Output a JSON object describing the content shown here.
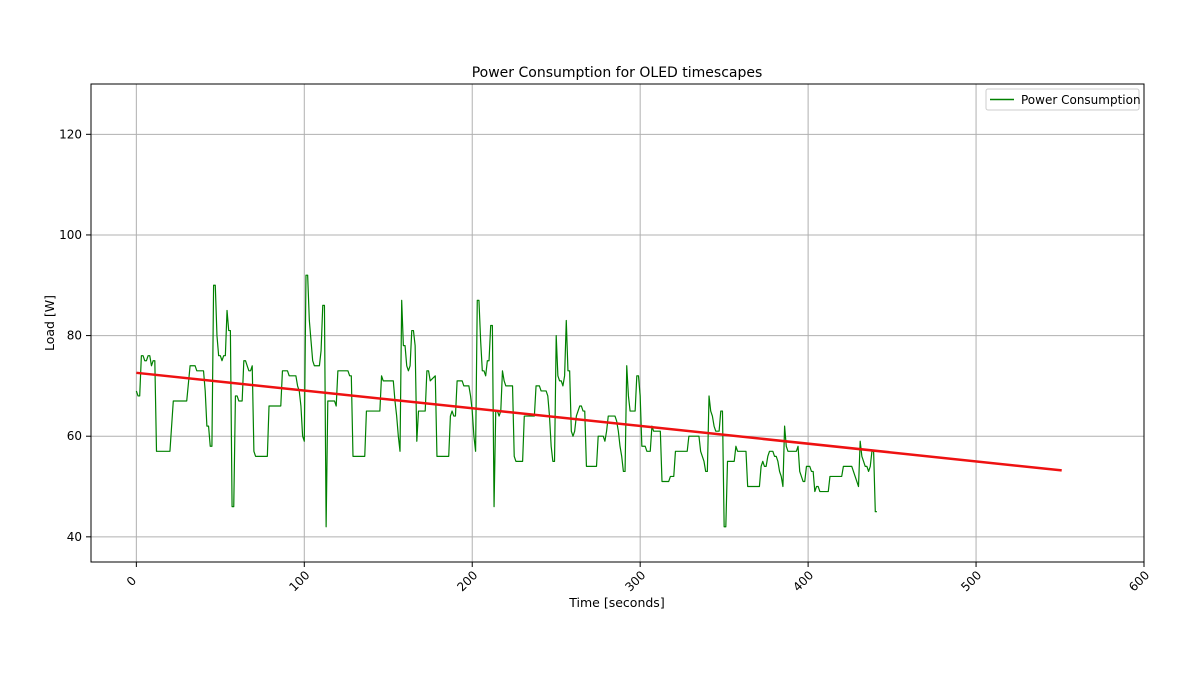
{
  "chart_data": {
    "type": "line",
    "title": "Power Consumption for OLED timescapes",
    "xlabel": "Time [seconds]",
    "ylabel": "Load [W]",
    "xlim": [
      -27,
      600
    ],
    "ylim": [
      35,
      130
    ],
    "xticks": [
      0,
      100,
      200,
      300,
      400,
      500,
      600
    ],
    "yticks": [
      40,
      60,
      80,
      100,
      120
    ],
    "xtick_rotation": -45,
    "grid": true,
    "legend": {
      "placement": "top-right",
      "entries": [
        "Power Consumption"
      ]
    },
    "colors": {
      "series": "#008000",
      "trend": "#ee1111",
      "grid": "#b0b0b0",
      "frame": "#000000"
    },
    "series": [
      {
        "name": "Power Consumption",
        "style": "line",
        "points": [
          [
            0,
            69
          ],
          [
            1,
            68
          ],
          [
            2,
            68
          ],
          [
            3,
            76
          ],
          [
            4,
            76
          ],
          [
            5,
            75
          ],
          [
            6,
            75
          ],
          [
            7,
            76
          ],
          [
            8,
            76
          ],
          [
            9,
            74
          ],
          [
            10,
            75
          ],
          [
            11,
            75
          ],
          [
            12,
            57
          ],
          [
            20,
            57
          ],
          [
            22,
            67
          ],
          [
            30,
            67
          ],
          [
            32,
            74
          ],
          [
            35,
            74
          ],
          [
            36,
            73
          ],
          [
            40,
            73
          ],
          [
            41,
            69
          ],
          [
            42,
            62
          ],
          [
            43,
            62
          ],
          [
            44,
            58
          ],
          [
            45,
            58
          ],
          [
            46,
            90
          ],
          [
            47,
            90
          ],
          [
            48,
            80
          ],
          [
            49,
            76
          ],
          [
            50,
            76
          ],
          [
            51,
            75
          ],
          [
            52,
            76
          ],
          [
            53,
            76
          ],
          [
            54,
            85
          ],
          [
            55,
            81
          ],
          [
            56,
            81
          ],
          [
            57,
            46
          ],
          [
            58,
            46
          ],
          [
            59,
            68
          ],
          [
            60,
            68
          ],
          [
            61,
            67
          ],
          [
            63,
            67
          ],
          [
            64,
            75
          ],
          [
            65,
            75
          ],
          [
            66,
            74
          ],
          [
            67,
            73
          ],
          [
            68,
            73
          ],
          [
            69,
            74
          ],
          [
            70,
            57
          ],
          [
            71,
            56
          ],
          [
            78,
            56
          ],
          [
            79,
            66
          ],
          [
            86,
            66
          ],
          [
            87,
            73
          ],
          [
            90,
            73
          ],
          [
            91,
            72
          ],
          [
            95,
            72
          ],
          [
            96,
            70
          ],
          [
            97,
            69
          ],
          [
            98,
            66
          ],
          [
            99,
            60
          ],
          [
            100,
            59
          ],
          [
            101,
            92
          ],
          [
            102,
            92
          ],
          [
            103,
            83
          ],
          [
            104,
            79
          ],
          [
            105,
            75
          ],
          [
            106,
            74
          ],
          [
            109,
            74
          ],
          [
            110,
            77
          ],
          [
            111,
            86
          ],
          [
            112,
            86
          ],
          [
            113,
            42
          ],
          [
            114,
            67
          ],
          [
            118,
            67
          ],
          [
            119,
            66
          ],
          [
            120,
            73
          ],
          [
            126,
            73
          ],
          [
            127,
            72
          ],
          [
            128,
            72
          ],
          [
            129,
            56
          ],
          [
            136,
            56
          ],
          [
            137,
            65
          ],
          [
            145,
            65
          ],
          [
            146,
            72
          ],
          [
            147,
            71
          ],
          [
            153,
            71
          ],
          [
            154,
            67
          ],
          [
            155,
            64
          ],
          [
            156,
            60
          ],
          [
            157,
            57
          ],
          [
            158,
            87
          ],
          [
            159,
            78
          ],
          [
            160,
            78
          ],
          [
            161,
            74
          ],
          [
            162,
            73
          ],
          [
            163,
            74
          ],
          [
            164,
            81
          ],
          [
            165,
            81
          ],
          [
            166,
            78
          ],
          [
            167,
            59
          ],
          [
            168,
            65
          ],
          [
            172,
            65
          ],
          [
            173,
            73
          ],
          [
            174,
            73
          ],
          [
            175,
            71
          ],
          [
            178,
            72
          ],
          [
            179,
            56
          ],
          [
            186,
            56
          ],
          [
            187,
            64
          ],
          [
            188,
            65
          ],
          [
            189,
            64
          ],
          [
            190,
            64
          ],
          [
            191,
            71
          ],
          [
            194,
            71
          ],
          [
            195,
            70
          ],
          [
            198,
            70
          ],
          [
            199,
            68
          ],
          [
            200,
            65
          ],
          [
            201,
            60
          ],
          [
            202,
            57
          ],
          [
            203,
            87
          ],
          [
            204,
            87
          ],
          [
            205,
            79
          ],
          [
            206,
            73
          ],
          [
            207,
            73
          ],
          [
            208,
            72
          ],
          [
            209,
            75
          ],
          [
            210,
            75
          ],
          [
            211,
            82
          ],
          [
            212,
            82
          ],
          [
            213,
            46
          ],
          [
            214,
            65
          ],
          [
            215,
            65
          ],
          [
            216,
            64
          ],
          [
            217,
            65
          ],
          [
            218,
            73
          ],
          [
            219,
            71
          ],
          [
            220,
            70
          ],
          [
            224,
            70
          ],
          [
            225,
            56
          ],
          [
            226,
            55
          ],
          [
            230,
            55
          ],
          [
            231,
            64
          ],
          [
            237,
            64
          ],
          [
            238,
            70
          ],
          [
            240,
            70
          ],
          [
            241,
            69
          ],
          [
            244,
            69
          ],
          [
            245,
            68
          ],
          [
            246,
            64
          ],
          [
            247,
            58
          ],
          [
            248,
            55
          ],
          [
            249,
            55
          ],
          [
            250,
            80
          ],
          [
            251,
            72
          ],
          [
            252,
            71
          ],
          [
            253,
            71
          ],
          [
            254,
            70
          ],
          [
            255,
            72
          ],
          [
            256,
            83
          ],
          [
            257,
            73
          ],
          [
            258,
            73
          ],
          [
            259,
            61
          ],
          [
            260,
            60
          ],
          [
            261,
            61
          ],
          [
            262,
            64
          ],
          [
            263,
            65
          ],
          [
            264,
            66
          ],
          [
            265,
            66
          ],
          [
            266,
            65
          ],
          [
            267,
            65
          ],
          [
            268,
            54
          ],
          [
            274,
            54
          ],
          [
            275,
            60
          ],
          [
            278,
            60
          ],
          [
            279,
            59
          ],
          [
            280,
            61
          ],
          [
            281,
            64
          ],
          [
            285,
            64
          ],
          [
            286,
            63
          ],
          [
            287,
            61
          ],
          [
            288,
            58
          ],
          [
            289,
            56
          ],
          [
            290,
            53
          ],
          [
            291,
            53
          ],
          [
            292,
            74
          ],
          [
            293,
            68
          ],
          [
            294,
            65
          ],
          [
            297,
            65
          ],
          [
            298,
            72
          ],
          [
            299,
            72
          ],
          [
            300,
            68
          ],
          [
            301,
            58
          ],
          [
            303,
            58
          ],
          [
            304,
            57
          ],
          [
            306,
            57
          ],
          [
            307,
            62
          ],
          [
            308,
            61
          ],
          [
            312,
            61
          ],
          [
            313,
            51
          ],
          [
            317,
            51
          ],
          [
            318,
            52
          ],
          [
            320,
            52
          ],
          [
            321,
            57
          ],
          [
            328,
            57
          ],
          [
            329,
            60
          ],
          [
            335,
            60
          ],
          [
            336,
            57
          ],
          [
            337,
            56
          ],
          [
            338,
            55
          ],
          [
            339,
            53
          ],
          [
            340,
            53
          ],
          [
            341,
            68
          ],
          [
            342,
            65
          ],
          [
            343,
            64
          ],
          [
            344,
            62
          ],
          [
            345,
            61
          ],
          [
            347,
            61
          ],
          [
            348,
            65
          ],
          [
            349,
            65
          ],
          [
            350,
            42
          ],
          [
            351,
            42
          ],
          [
            352,
            55
          ],
          [
            356,
            55
          ],
          [
            357,
            58
          ],
          [
            358,
            57
          ],
          [
            363,
            57
          ],
          [
            364,
            50
          ],
          [
            371,
            50
          ],
          [
            372,
            54
          ],
          [
            373,
            55
          ],
          [
            374,
            54
          ],
          [
            375,
            54
          ],
          [
            376,
            56
          ],
          [
            377,
            57
          ],
          [
            379,
            57
          ],
          [
            380,
            56
          ],
          [
            381,
            56
          ],
          [
            382,
            55
          ],
          [
            383,
            53
          ],
          [
            384,
            52
          ],
          [
            385,
            50
          ],
          [
            386,
            62
          ],
          [
            387,
            58
          ],
          [
            388,
            57
          ],
          [
            393,
            57
          ],
          [
            394,
            58
          ],
          [
            395,
            53
          ],
          [
            396,
            52
          ],
          [
            397,
            51
          ],
          [
            398,
            51
          ],
          [
            399,
            54
          ],
          [
            401,
            54
          ],
          [
            402,
            53
          ],
          [
            403,
            53
          ],
          [
            404,
            49
          ],
          [
            405,
            50
          ],
          [
            406,
            50
          ],
          [
            407,
            49
          ],
          [
            412,
            49
          ],
          [
            413,
            52
          ],
          [
            420,
            52
          ],
          [
            421,
            54
          ],
          [
            426,
            54
          ],
          [
            427,
            53
          ],
          [
            428,
            52
          ],
          [
            429,
            51
          ],
          [
            430,
            50
          ],
          [
            431,
            59
          ],
          [
            432,
            56
          ],
          [
            433,
            55
          ],
          [
            434,
            54
          ],
          [
            435,
            54
          ],
          [
            436,
            53
          ],
          [
            437,
            54
          ],
          [
            438,
            57
          ],
          [
            439,
            57
          ],
          [
            440,
            45
          ],
          [
            441,
            45
          ]
        ]
      },
      {
        "name": "",
        "style": "trend",
        "points": [
          [
            0,
            72.6
          ],
          [
            551,
            53.2
          ]
        ]
      }
    ]
  }
}
